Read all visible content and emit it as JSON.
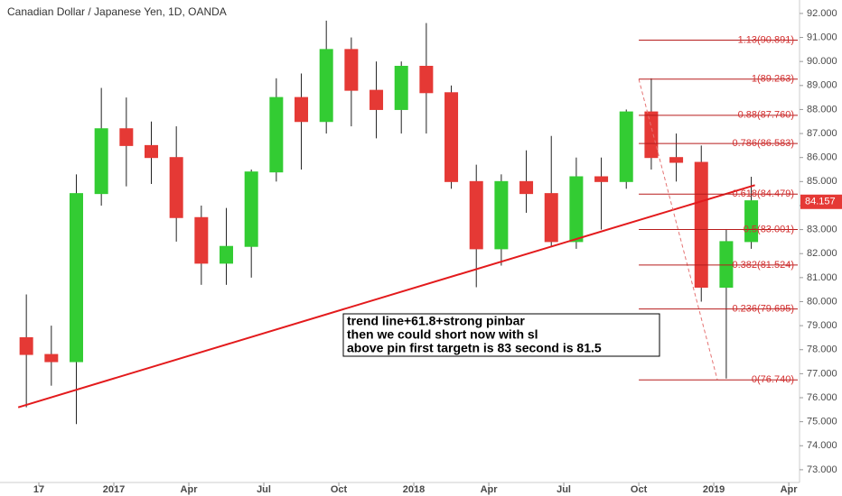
{
  "chart_data": {
    "type": "candlestick",
    "title": "Canadian Dollar / Japanese Yen, 1D, OANDA",
    "x": [
      "2016-09",
      "2016-10",
      "2016-11",
      "2016-12",
      "2017-01",
      "2017-02",
      "2017-03",
      "2017-04",
      "2017-05",
      "2017-06",
      "2017-07",
      "2017-08",
      "2017-09",
      "2017-10",
      "2017-11",
      "2017-12",
      "2018-01",
      "2018-02",
      "2018-03",
      "2018-04",
      "2018-05",
      "2018-06",
      "2018-07",
      "2018-08",
      "2018-09",
      "2018-10",
      "2018-11",
      "2018-12",
      "2019-01",
      "2019-02"
    ],
    "open": [
      78.5,
      77.8,
      77.5,
      84.5,
      87.2,
      86.5,
      86.0,
      83.5,
      81.6,
      82.3,
      85.4,
      88.5,
      87.5,
      90.5,
      88.8,
      88.0,
      89.8,
      88.7,
      85.0,
      82.2,
      85.0,
      84.5,
      82.5,
      85.2,
      85.0,
      87.9,
      86.0,
      85.8,
      80.6,
      82.5
    ],
    "high": [
      80.3,
      79.0,
      85.3,
      88.9,
      88.5,
      87.5,
      87.3,
      84.0,
      83.9,
      85.5,
      89.3,
      89.5,
      91.7,
      91.0,
      90.0,
      90.0,
      91.6,
      89.0,
      85.7,
      85.3,
      86.3,
      86.9,
      86.0,
      86.0,
      88.0,
      89.3,
      87.0,
      86.5,
      83.0,
      85.2
    ],
    "low": [
      75.6,
      76.5,
      74.9,
      84.0,
      84.8,
      84.9,
      82.5,
      80.7,
      80.7,
      81.0,
      85.0,
      85.5,
      87.0,
      87.3,
      86.8,
      87.0,
      87.0,
      84.7,
      80.6,
      81.5,
      83.7,
      82.3,
      82.2,
      83.0,
      84.7,
      85.5,
      85.0,
      80.0,
      76.8,
      82.2
    ],
    "close": [
      77.8,
      77.5,
      84.5,
      87.2,
      86.5,
      86.0,
      83.5,
      81.6,
      82.3,
      85.4,
      88.5,
      87.5,
      90.5,
      88.8,
      88.0,
      89.8,
      88.7,
      85.0,
      82.2,
      85.0,
      84.5,
      82.5,
      85.2,
      85.0,
      87.9,
      86.0,
      85.8,
      80.6,
      82.5,
      84.2
    ],
    "up_color": "#33cc33",
    "down_color": "#e53935",
    "ylim": [
      72.47,
      92.56
    ],
    "yticks": [
      {
        "value": 73,
        "label": "73.000"
      },
      {
        "value": 74,
        "label": "74.000"
      },
      {
        "value": 75,
        "label": "75.000"
      },
      {
        "value": 76,
        "label": "76.000"
      },
      {
        "value": 77,
        "label": "77.000"
      },
      {
        "value": 78,
        "label": "78.000"
      },
      {
        "value": 79,
        "label": "79.000"
      },
      {
        "value": 80,
        "label": "80.000"
      },
      {
        "value": 81,
        "label": "81.000"
      },
      {
        "value": 82,
        "label": "82.000"
      },
      {
        "value": 83,
        "label": "83.000"
      },
      {
        "value": 84,
        "label": "84.000"
      },
      {
        "value": 85,
        "label": "85.000"
      },
      {
        "value": 86,
        "label": "86.000"
      },
      {
        "value": 87,
        "label": "87.000"
      },
      {
        "value": 88,
        "label": "88.000"
      },
      {
        "value": 89,
        "label": "89.000"
      },
      {
        "value": 90,
        "label": "90.000"
      },
      {
        "value": 91,
        "label": "91.000"
      },
      {
        "value": 92,
        "label": "92.000"
      }
    ],
    "xticks": [
      {
        "value": "2016-10",
        "label": "17"
      },
      {
        "value": "2017-01",
        "label": "2017"
      },
      {
        "value": "2017-04",
        "label": "Apr"
      },
      {
        "value": "2017-07",
        "label": "Jul"
      },
      {
        "value": "2017-10",
        "label": "Oct"
      },
      {
        "value": "2018-01",
        "label": "2018"
      },
      {
        "value": "2018-04",
        "label": "Apr"
      },
      {
        "value": "2018-07",
        "label": "Jul"
      },
      {
        "value": "2018-10",
        "label": "Oct"
      },
      {
        "value": "2019-01",
        "label": "2019"
      },
      {
        "value": "2019-04",
        "label": "Apr"
      }
    ],
    "last_price": 84.157,
    "trend_line": {
      "color": "#e31a1c",
      "from": {
        "x": "2016-09",
        "y": 75.6
      },
      "to": {
        "x": "2019-02",
        "y": 84.85
      }
    },
    "fib": {
      "color": "#b71c1c",
      "from": {
        "x": "2018-10",
        "y": 89.263
      },
      "to": {
        "x": "2019-01",
        "y": 76.74
      },
      "levels": [
        {
          "value": 90.891,
          "label": "1.13(90.891)"
        },
        {
          "value": 89.263,
          "label": "1(89.263)"
        },
        {
          "value": 87.76,
          "label": "0.88(87.760)"
        },
        {
          "value": 86.583,
          "label": "0.786(86.583)"
        },
        {
          "value": 84.479,
          "label": "0.618(84.479)"
        },
        {
          "value": 83.001,
          "label": "0.5(83.001)"
        },
        {
          "value": 81.524,
          "label": "0.382(81.524)"
        },
        {
          "value": 79.695,
          "label": "0.236(79.695)"
        },
        {
          "value": 76.74,
          "label": "0(76.740)"
        }
      ]
    },
    "annotation": [
      "trend line+61.8+strong pinbar",
      "then we could short now with sl",
      "above pin first targetn is 83 second is 81.5"
    ]
  }
}
